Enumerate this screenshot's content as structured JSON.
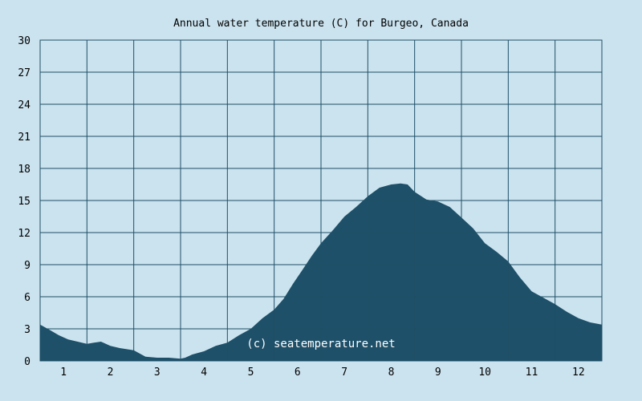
{
  "chart_data": {
    "type": "area",
    "title": "Annual water temperature (C) for Burgeo, Canada",
    "xlabel": "",
    "ylabel": "",
    "x_ticks": [
      "1",
      "2",
      "3",
      "4",
      "5",
      "6",
      "7",
      "8",
      "9",
      "10",
      "11",
      "12"
    ],
    "y_ticks": [
      0,
      3,
      6,
      9,
      12,
      15,
      18,
      21,
      24,
      27,
      30
    ],
    "xlim": [
      0.5,
      12.5
    ],
    "ylim": [
      0,
      30
    ],
    "grid": true,
    "watermark": "(c) seatemperature.net",
    "colors": {
      "background": "#cbe3ef",
      "fill": "#1e5069",
      "grid": "#1f4f66"
    },
    "series": [
      {
        "x": [
          0.5,
          0.7,
          0.9,
          1.1,
          1.3,
          1.5,
          1.65,
          1.8,
          2.0,
          2.2,
          2.5,
          2.75,
          3.0,
          3.25,
          3.5,
          3.6,
          3.75,
          4.0,
          4.25,
          4.5,
          4.75,
          5.0,
          5.25,
          5.5,
          5.7,
          5.9,
          6.1,
          6.3,
          6.5,
          6.75,
          7.0,
          7.25,
          7.5,
          7.75,
          8.0,
          8.2,
          8.35,
          8.5,
          8.75,
          9.0,
          9.25,
          9.5,
          9.75,
          10.0,
          10.25,
          10.5,
          10.75,
          11.0,
          11.25,
          11.5,
          11.75,
          12.0,
          12.25,
          12.5
        ],
        "y": [
          3.4,
          2.9,
          2.4,
          2.0,
          1.8,
          1.6,
          1.7,
          1.8,
          1.4,
          1.2,
          1.0,
          0.4,
          0.3,
          0.3,
          0.2,
          0.3,
          0.6,
          0.9,
          1.4,
          1.7,
          2.4,
          3.0,
          4.0,
          4.8,
          5.8,
          7.2,
          8.5,
          9.8,
          11.0,
          12.2,
          13.5,
          14.4,
          15.4,
          16.2,
          16.5,
          16.6,
          16.5,
          15.8,
          15.1,
          14.9,
          14.4,
          13.4,
          12.4,
          11.0,
          10.2,
          9.3,
          7.8,
          6.5,
          5.9,
          5.3,
          4.6,
          4.0,
          3.6,
          3.4
        ]
      }
    ]
  }
}
